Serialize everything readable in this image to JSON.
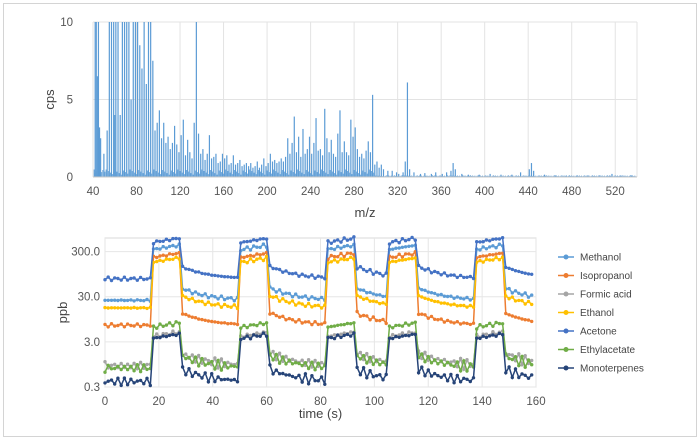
{
  "chart_data": [
    {
      "type": "line",
      "title": "",
      "xlabel": "m/z",
      "ylabel": "cps",
      "xlim": [
        40,
        540
      ],
      "ylim": [
        0,
        10
      ],
      "xticks": [
        "40",
        "80",
        "120",
        "160",
        "200",
        "240",
        "280",
        "320",
        "360",
        "400",
        "440",
        "480",
        "520"
      ],
      "yticks": [
        "0",
        "5",
        "10"
      ],
      "grid": true,
      "color": "#5b9bd5",
      "peaks": [
        {
          "x": 42,
          "y": 10
        },
        {
          "x": 43,
          "y": 10
        },
        {
          "x": 44,
          "y": 6.5
        },
        {
          "x": 45,
          "y": 10
        },
        {
          "x": 46,
          "y": 3.2
        },
        {
          "x": 47,
          "y": 2.5
        },
        {
          "x": 50,
          "y": 1.5
        },
        {
          "x": 53,
          "y": 3
        },
        {
          "x": 55,
          "y": 10
        },
        {
          "x": 57,
          "y": 10
        },
        {
          "x": 59,
          "y": 10
        },
        {
          "x": 60,
          "y": 4
        },
        {
          "x": 61,
          "y": 10
        },
        {
          "x": 63,
          "y": 10
        },
        {
          "x": 65,
          "y": 4
        },
        {
          "x": 67,
          "y": 10
        },
        {
          "x": 69,
          "y": 10
        },
        {
          "x": 71,
          "y": 10
        },
        {
          "x": 73,
          "y": 10
        },
        {
          "x": 75,
          "y": 5
        },
        {
          "x": 77,
          "y": 10
        },
        {
          "x": 79,
          "y": 10
        },
        {
          "x": 81,
          "y": 10
        },
        {
          "x": 83,
          "y": 8.5
        },
        {
          "x": 85,
          "y": 7
        },
        {
          "x": 87,
          "y": 10
        },
        {
          "x": 89,
          "y": 6
        },
        {
          "x": 91,
          "y": 10
        },
        {
          "x": 93,
          "y": 10
        },
        {
          "x": 95,
          "y": 7.5
        },
        {
          "x": 97,
          "y": 3
        },
        {
          "x": 99,
          "y": 3.5
        },
        {
          "x": 101,
          "y": 4.3
        },
        {
          "x": 103,
          "y": 2.5
        },
        {
          "x": 105,
          "y": 3.5
        },
        {
          "x": 107,
          "y": 2.2
        },
        {
          "x": 109,
          "y": 2.6
        },
        {
          "x": 111,
          "y": 1.8
        },
        {
          "x": 113,
          "y": 2.2
        },
        {
          "x": 115,
          "y": 3.3
        },
        {
          "x": 117,
          "y": 2.1
        },
        {
          "x": 119,
          "y": 1.6
        },
        {
          "x": 121,
          "y": 2.7
        },
        {
          "x": 123,
          "y": 3.7
        },
        {
          "x": 125,
          "y": 1.4
        },
        {
          "x": 127,
          "y": 2.4
        },
        {
          "x": 129,
          "y": 1.6
        },
        {
          "x": 131,
          "y": 1.2
        },
        {
          "x": 133,
          "y": 3.5
        },
        {
          "x": 135,
          "y": 10
        },
        {
          "x": 137,
          "y": 2.8
        },
        {
          "x": 139,
          "y": 1.5
        },
        {
          "x": 141,
          "y": 1.8
        },
        {
          "x": 143,
          "y": 1.1
        },
        {
          "x": 145,
          "y": 1.5
        },
        {
          "x": 147,
          "y": 2.7
        },
        {
          "x": 149,
          "y": 1.2
        },
        {
          "x": 151,
          "y": 1.3
        },
        {
          "x": 153,
          "y": 1.5
        },
        {
          "x": 155,
          "y": 0.9
        },
        {
          "x": 157,
          "y": 1.0
        },
        {
          "x": 159,
          "y": 1.5
        },
        {
          "x": 161,
          "y": 1.2
        },
        {
          "x": 163,
          "y": 1.4
        },
        {
          "x": 165,
          "y": 0.8
        },
        {
          "x": 167,
          "y": 0.9
        },
        {
          "x": 169,
          "y": 1.4
        },
        {
          "x": 171,
          "y": 0.8
        },
        {
          "x": 173,
          "y": 0.9
        },
        {
          "x": 175,
          "y": 1.1
        },
        {
          "x": 177,
          "y": 0.7
        },
        {
          "x": 179,
          "y": 0.8
        },
        {
          "x": 181,
          "y": 0.9
        },
        {
          "x": 183,
          "y": 0.7
        },
        {
          "x": 185,
          "y": 0.9
        },
        {
          "x": 187,
          "y": 0.6
        },
        {
          "x": 189,
          "y": 0.7
        },
        {
          "x": 191,
          "y": 1.0
        },
        {
          "x": 193,
          "y": 0.6
        },
        {
          "x": 195,
          "y": 0.8
        },
        {
          "x": 197,
          "y": 1.2
        },
        {
          "x": 199,
          "y": 0.7
        },
        {
          "x": 201,
          "y": 0.9
        },
        {
          "x": 203,
          "y": 1.5
        },
        {
          "x": 205,
          "y": 1.0
        },
        {
          "x": 207,
          "y": 1.1
        },
        {
          "x": 209,
          "y": 0.9
        },
        {
          "x": 211,
          "y": 1.0
        },
        {
          "x": 213,
          "y": 1.2
        },
        {
          "x": 215,
          "y": 1.0
        },
        {
          "x": 217,
          "y": 1.3
        },
        {
          "x": 219,
          "y": 2.5
        },
        {
          "x": 221,
          "y": 1.5
        },
        {
          "x": 223,
          "y": 2.2
        },
        {
          "x": 225,
          "y": 3.9
        },
        {
          "x": 227,
          "y": 1.6
        },
        {
          "x": 229,
          "y": 2.6
        },
        {
          "x": 231,
          "y": 1.3
        },
        {
          "x": 233,
          "y": 3.1
        },
        {
          "x": 235,
          "y": 1.5
        },
        {
          "x": 237,
          "y": 1.8
        },
        {
          "x": 239,
          "y": 2.6
        },
        {
          "x": 241,
          "y": 1.5
        },
        {
          "x": 243,
          "y": 2.2
        },
        {
          "x": 245,
          "y": 3.8
        },
        {
          "x": 247,
          "y": 1.7
        },
        {
          "x": 249,
          "y": 1.8
        },
        {
          "x": 251,
          "y": 1.4
        },
        {
          "x": 253,
          "y": 4.4
        },
        {
          "x": 255,
          "y": 2.5
        },
        {
          "x": 257,
          "y": 1.6
        },
        {
          "x": 259,
          "y": 2.4
        },
        {
          "x": 261,
          "y": 1.5
        },
        {
          "x": 263,
          "y": 1.3
        },
        {
          "x": 265,
          "y": 2.8
        },
        {
          "x": 267,
          "y": 4.3
        },
        {
          "x": 269,
          "y": 1.6
        },
        {
          "x": 271,
          "y": 2.3
        },
        {
          "x": 273,
          "y": 1.6
        },
        {
          "x": 275,
          "y": 1.4
        },
        {
          "x": 277,
          "y": 3.7
        },
        {
          "x": 279,
          "y": 2.6
        },
        {
          "x": 281,
          "y": 3.2
        },
        {
          "x": 283,
          "y": 1.8
        },
        {
          "x": 285,
          "y": 1.3
        },
        {
          "x": 287,
          "y": 1.5
        },
        {
          "x": 289,
          "y": 1.2
        },
        {
          "x": 291,
          "y": 1.7
        },
        {
          "x": 293,
          "y": 2.3
        },
        {
          "x": 295,
          "y": 1.6
        },
        {
          "x": 297,
          "y": 5.3
        },
        {
          "x": 299,
          "y": 0.8
        },
        {
          "x": 301,
          "y": 1.0
        },
        {
          "x": 303,
          "y": 0.6
        },
        {
          "x": 305,
          "y": 0.8
        },
        {
          "x": 307,
          "y": 0.5
        },
        {
          "x": 311,
          "y": 0.4
        },
        {
          "x": 315,
          "y": 0.4
        },
        {
          "x": 319,
          "y": 0.3
        },
        {
          "x": 321,
          "y": 0.2
        },
        {
          "x": 325,
          "y": 0.3
        },
        {
          "x": 327,
          "y": 1.0
        },
        {
          "x": 329,
          "y": 6.1
        },
        {
          "x": 331,
          "y": 0.5
        },
        {
          "x": 335,
          "y": 0.3
        },
        {
          "x": 341,
          "y": 0.2
        },
        {
          "x": 345,
          "y": 0.25
        },
        {
          "x": 351,
          "y": 0.2
        },
        {
          "x": 355,
          "y": 0.3
        },
        {
          "x": 361,
          "y": 0.2
        },
        {
          "x": 365,
          "y": 0.3
        },
        {
          "x": 369,
          "y": 0.4
        },
        {
          "x": 371,
          "y": 0.9
        },
        {
          "x": 373,
          "y": 0.5
        },
        {
          "x": 379,
          "y": 0.2
        },
        {
          "x": 385,
          "y": 0.15
        },
        {
          "x": 395,
          "y": 0.15
        },
        {
          "x": 405,
          "y": 0.2
        },
        {
          "x": 415,
          "y": 0.15
        },
        {
          "x": 425,
          "y": 0.15
        },
        {
          "x": 433,
          "y": 0.3
        },
        {
          "x": 441,
          "y": 0.5
        },
        {
          "x": 443,
          "y": 0.9
        },
        {
          "x": 445,
          "y": 0.4
        },
        {
          "x": 455,
          "y": 0.15
        },
        {
          "x": 465,
          "y": 0.1
        },
        {
          "x": 475,
          "y": 0.1
        },
        {
          "x": 485,
          "y": 0.1
        },
        {
          "x": 495,
          "y": 0.1
        },
        {
          "x": 505,
          "y": 0.1
        },
        {
          "x": 515,
          "y": 0.1
        },
        {
          "x": 517,
          "y": 0.2
        },
        {
          "x": 525,
          "y": 0.1
        },
        {
          "x": 535,
          "y": 0.1
        }
      ]
    },
    {
      "type": "line",
      "title": "",
      "xlabel": "time (s)",
      "ylabel": "ppb",
      "xlim": [
        0,
        160
      ],
      "ylim": [
        0.3,
        600
      ],
      "yscale": "log",
      "xticks": [
        "0",
        "20",
        "40",
        "60",
        "80",
        "100",
        "120",
        "140",
        "160"
      ],
      "yticks": [
        {
          "value": 300,
          "label": "300.0"
        },
        {
          "value": 30,
          "label": "30.0"
        },
        {
          "value": 3,
          "label": "3.0"
        },
        {
          "value": 0.3,
          "label": "0.3"
        }
      ],
      "grid": true,
      "legend_position": "right",
      "pulses": [
        [
          17,
          28
        ],
        [
          50,
          61
        ],
        [
          82,
          93
        ],
        [
          105,
          116
        ],
        [
          137,
          148
        ]
      ],
      "series": [
        {
          "name": "Methanol",
          "color": "#5b9bd5",
          "marker": "circle",
          "low": 25,
          "high": 420
        },
        {
          "name": "Isopropanol",
          "color": "#ed7d31",
          "marker": "circle",
          "low": 7,
          "high": 280
        },
        {
          "name": "Formic acid",
          "color": "#a5a5a5",
          "marker": "circle",
          "low": 0.9,
          "high": 5
        },
        {
          "name": "Ethanol",
          "color": "#ffc000",
          "marker": "circle",
          "low": 17,
          "high": 220
        },
        {
          "name": "Acetone",
          "color": "#4472c4",
          "marker": "circle",
          "low": 75,
          "high": 600
        },
        {
          "name": "Ethylacetate",
          "color": "#70ad47",
          "marker": "circle",
          "low": 0.8,
          "high": 8
        },
        {
          "name": "Monoterpenes",
          "color": "#264478",
          "marker": "circle",
          "low": 0.4,
          "high": 4.5
        }
      ]
    }
  ]
}
